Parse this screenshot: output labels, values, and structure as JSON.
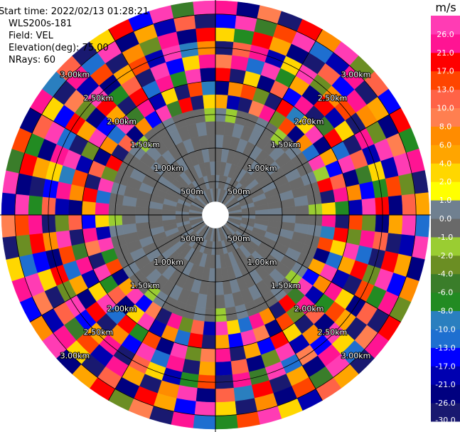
{
  "chart_data": {
    "type": "ppi",
    "info": [
      "Start time: 2022/02/13 01:28:21",
      "WLS200s-181",
      "Field: VEL",
      "Elevation(deg): 75.00",
      "NRays: 60"
    ],
    "colorbar_title": "m/s",
    "clim": [
      -30,
      30
    ],
    "colorbar_ticks": [
      {
        "value": -30,
        "label": "-30.0"
      },
      {
        "value": -26,
        "label": "-26.0"
      },
      {
        "value": -21,
        "label": "-21.0"
      },
      {
        "value": -17,
        "label": "-17.0"
      },
      {
        "value": -13,
        "label": "-13.0"
      },
      {
        "value": -10,
        "label": "-10.0"
      },
      {
        "value": -8,
        "label": "-8.0"
      },
      {
        "value": -6,
        "label": "-6.0"
      },
      {
        "value": -4,
        "label": "-4.0"
      },
      {
        "value": -2,
        "label": "-2.0"
      },
      {
        "value": -1,
        "label": "-1.0"
      },
      {
        "value": 0,
        "label": "0.0"
      },
      {
        "value": 1,
        "label": "1.0"
      },
      {
        "value": 2,
        "label": "2.0"
      },
      {
        "value": 4,
        "label": "4.0"
      },
      {
        "value": 6,
        "label": "6.0"
      },
      {
        "value": 8,
        "label": "8.0"
      },
      {
        "value": 10,
        "label": "10.0"
      },
      {
        "value": 13,
        "label": "13.0"
      },
      {
        "value": 17,
        "label": "17.0"
      },
      {
        "value": 21,
        "label": "21.0"
      },
      {
        "value": 26,
        "label": "26.0"
      }
    ],
    "colors": [
      "#191970",
      "#000080",
      "#0000b0",
      "#0000ff",
      "#1e6fd0",
      "#2a7fbf",
      "#228b22",
      "#3a7d2a",
      "#6b8e23",
      "#9acd32",
      "#696969",
      "#708090",
      "#ffff00",
      "#ffd700",
      "#ffa500",
      "#ff8c00",
      "#ff7f50",
      "#ff6347",
      "#ff4500",
      "#ff0000",
      "#ff1493",
      "#ff3cb4"
    ],
    "range_rings": [
      {
        "value": 0.5,
        "label": "500m"
      },
      {
        "value": 1.0,
        "label": "1.00km"
      },
      {
        "value": 1.5,
        "label": "1.50km"
      },
      {
        "value": 2.0,
        "label": "2.00km"
      },
      {
        "value": 2.5,
        "label": "2.50km"
      },
      {
        "value": 3.0,
        "label": "3.00km"
      }
    ],
    "azimuths": [
      0,
      6,
      12,
      18,
      24,
      30,
      36,
      42,
      48,
      54,
      60,
      66,
      72,
      78,
      84,
      90,
      96,
      102,
      108,
      114,
      120,
      126,
      132,
      138,
      144,
      150,
      156,
      162,
      168,
      174,
      180,
      186,
      192,
      198,
      204,
      210,
      216,
      222,
      228,
      234,
      240,
      246,
      252,
      258,
      264,
      270,
      276,
      282,
      288,
      294,
      300,
      306,
      312,
      318,
      324,
      330,
      336,
      342,
      348,
      354
    ],
    "ranges": [
      0.2,
      0.4,
      0.6,
      0.8,
      1.0,
      1.2,
      1.4,
      1.6,
      1.8,
      2.0,
      2.2,
      2.4,
      2.6,
      2.8,
      3.0,
      3.2
    ],
    "values": [
      [
        -0.5,
        0.5,
        -0.5,
        -0.5,
        0.5,
        -0.5,
        0.5,
        5,
        -23,
        19,
        9,
        -28,
        3,
        -15,
        23
      ],
      [
        0.5,
        -0.5,
        -0.5,
        0.5,
        -0.5,
        -0.5,
        -1.5,
        -19,
        7,
        -28,
        23,
        11,
        -7,
        28,
        -23
      ],
      [
        -0.5,
        -0.5,
        0.5,
        -0.5,
        -0.5,
        0.5,
        -0.5,
        -28,
        15,
        3,
        -11,
        23,
        19,
        -5,
        9
      ],
      [
        -0.5,
        0.5,
        -0.5,
        -0.5,
        0.5,
        -0.5,
        -0.5,
        9,
        -3,
        -23,
        28,
        -19,
        5,
        15,
        -28
      ],
      [
        0.5,
        -0.5,
        -0.5,
        -0.5,
        -0.5,
        0.5,
        0.5,
        23,
        -28,
        11,
        -7,
        3,
        -23,
        28,
        19
      ],
      [
        -0.5,
        -0.5,
        0.5,
        -0.5,
        0.5,
        -0.5,
        -0.5,
        -3,
        19,
        -15,
        5,
        28,
        -28,
        -11,
        7
      ],
      [
        -0.5,
        0.5,
        -0.5,
        0.5,
        -0.5,
        -0.5,
        -1.5,
        15,
        -9,
        23,
        -23,
        -3,
        11,
        -19,
        28
      ],
      [
        0.5,
        -0.5,
        -0.5,
        -0.5,
        -0.5,
        0.5,
        -0.5,
        -23,
        3,
        -28,
        19,
        7,
        -15,
        23,
        -3
      ],
      [
        -0.5,
        -0.5,
        0.5,
        -0.5,
        0.5,
        -0.5,
        0.5,
        7,
        28,
        -5,
        -19,
        15,
        23,
        -28,
        11
      ],
      [
        -0.5,
        0.5,
        -0.5,
        -0.5,
        -0.5,
        -0.5,
        -0.5,
        -11,
        -23,
        19,
        3,
        -28,
        7,
        5,
        -15
      ],
      [
        0.5,
        -0.5,
        -0.5,
        0.5,
        -0.5,
        0.5,
        -0.5,
        28,
        5,
        -11,
        -28,
        23,
        -3,
        -23,
        19
      ],
      [
        -0.5,
        -0.5,
        0.5,
        -0.5,
        -0.5,
        -0.5,
        0.5,
        -1.5,
        -15,
        28,
        11,
        -19,
        28,
        9,
        -7
      ],
      [
        -0.5,
        0.5,
        -0.5,
        -0.5,
        0.5,
        -0.5,
        -0.5,
        19,
        11,
        -23,
        -5,
        3,
        -19,
        28,
        23
      ],
      [
        0.5,
        -0.5,
        -0.5,
        -0.5,
        -0.5,
        0.5,
        -0.5,
        -28,
        23,
        7,
        -15,
        -7,
        15,
        -3,
        -28
      ],
      [
        -0.5,
        -0.5,
        0.5,
        0.5,
        -0.5,
        -0.5,
        -1.5,
        3,
        -7,
        -19,
        28,
        19,
        -23,
        11,
        5
      ],
      [
        -0.5,
        0.5,
        -0.5,
        -0.5,
        0.5,
        -0.5,
        -0.5,
        23,
        -28,
        15,
        -3,
        -23,
        5,
        28,
        -11
      ],
      [
        0.5,
        -0.5,
        -0.5,
        -0.5,
        -0.5,
        0.5,
        0.5,
        -9,
        19,
        -3,
        23,
        11,
        -28,
        -19,
        28
      ],
      [
        -0.5,
        -0.5,
        0.5,
        -0.5,
        0.5,
        -0.5,
        -0.5,
        15,
        3,
        28,
        -11,
        -28,
        19,
        5,
        -23
      ],
      [
        -0.5,
        0.5,
        -0.5,
        0.5,
        -0.5,
        -0.5,
        -0.5,
        -23,
        -11,
        5,
        19,
        -3,
        28,
        -15,
        7
      ],
      [
        0.5,
        -0.5,
        -0.5,
        -0.5,
        -0.5,
        0.5,
        -0.5,
        5,
        28,
        -19,
        -28,
        15,
        -7,
        23,
        -3
      ],
      [
        -0.5,
        -0.5,
        0.5,
        -0.5,
        0.5,
        -0.5,
        0.5,
        -15,
        7,
        23,
        3,
        -23,
        11,
        -28,
        19
      ],
      [
        -0.5,
        0.5,
        -0.5,
        -0.5,
        -0.5,
        -0.5,
        -1.5,
        28,
        -19,
        -7,
        15,
        5,
        -28,
        9,
        23
      ],
      [
        0.5,
        -0.5,
        -0.5,
        0.5,
        -0.5,
        0.5,
        -0.5,
        -5,
        23,
        11,
        -23,
        28,
        3,
        -11,
        -28
      ],
      [
        -0.5,
        -0.5,
        0.5,
        -0.5,
        -0.5,
        -0.5,
        0.5,
        19,
        -3,
        -28,
        7,
        -15,
        23,
        28,
        5
      ],
      [
        -0.5,
        0.5,
        -0.5,
        -0.5,
        0.5,
        -0.5,
        -0.5,
        -28,
        15,
        3,
        -19,
        9,
        -23,
        -5,
        11
      ],
      [
        0.5,
        -0.5,
        -0.5,
        -0.5,
        -0.5,
        0.5,
        -0.5,
        7,
        -23,
        19,
        28,
        -11,
        5,
        15,
        -19
      ],
      [
        -0.5,
        -0.5,
        0.5,
        0.5,
        -0.5,
        -0.5,
        -0.5,
        23,
        9,
        -15,
        -3,
        28,
        -28,
        -23,
        3
      ],
      [
        -0.5,
        0.5,
        -0.5,
        -0.5,
        0.5,
        -0.5,
        0.5,
        -11,
        28,
        5,
        -23,
        -5,
        19,
        7,
        28
      ],
      [
        0.5,
        -0.5,
        -0.5,
        -0.5,
        -0.5,
        0.5,
        -0.5,
        3,
        -15,
        -28,
        11,
        23,
        -9,
        -28,
        15
      ],
      [
        -0.5,
        -0.5,
        0.5,
        -0.5,
        0.5,
        -0.5,
        -1.5,
        28,
        5,
        23,
        -19,
        -28,
        11,
        3,
        -7
      ],
      [
        -0.5,
        0.5,
        -0.5,
        0.5,
        -0.5,
        -0.5,
        -0.5,
        -19,
        -28,
        9,
        5,
        15,
        -23,
        28,
        -11
      ],
      [
        0.5,
        -0.5,
        -0.5,
        -0.5,
        -0.5,
        0.5,
        0.5,
        11,
        19,
        -3,
        -28,
        -7,
        28,
        -15,
        23
      ],
      [
        -0.5,
        -0.5,
        0.5,
        -0.5,
        0.5,
        -0.5,
        -0.5,
        -3,
        -11,
        28,
        23,
        -19,
        7,
        5,
        -28
      ],
      [
        -0.5,
        0.5,
        -0.5,
        -0.5,
        -0.5,
        -0.5,
        -0.5,
        23,
        7,
        -23,
        -11,
        3,
        -28,
        19,
        9
      ],
      [
        0.5,
        -0.5,
        -0.5,
        0.5,
        -0.5,
        0.5,
        -0.5,
        -28,
        -19,
        15,
        28,
        11,
        5,
        -23,
        -3
      ],
      [
        -0.5,
        -0.5,
        0.5,
        -0.5,
        -0.5,
        -0.5,
        0.5,
        9,
        28,
        -7,
        -15,
        -28,
        23,
        11,
        19
      ],
      [
        -0.5,
        0.5,
        -0.5,
        -0.5,
        0.5,
        -0.5,
        -1.5,
        -15,
        3,
        19,
        7,
        23,
        -19,
        -28,
        5
      ],
      [
        0.5,
        -0.5,
        -0.5,
        -0.5,
        -0.5,
        0.5,
        -0.5,
        28,
        -23,
        -11,
        -28,
        5,
        15,
        3,
        -23
      ],
      [
        -0.5,
        -0.5,
        0.5,
        0.5,
        -0.5,
        -0.5,
        -0.5,
        5,
        11,
        28,
        19,
        -15,
        -5,
        23,
        28
      ],
      [
        -0.5,
        0.5,
        -0.5,
        -0.5,
        0.5,
        -0.5,
        0.5,
        -23,
        -7,
        3,
        -23,
        28,
        11,
        -19,
        7
      ],
      [
        0.5,
        -0.5,
        -0.5,
        -0.5,
        -0.5,
        0.5,
        -0.5,
        15,
        28,
        -19,
        5,
        -3,
        -28,
        9,
        -15
      ],
      [
        -0.5,
        -0.5,
        0.5,
        -0.5,
        0.5,
        -0.5,
        -0.5,
        -7,
        -28,
        23,
        -11,
        19,
        3,
        28,
        23
      ],
      [
        -0.5,
        0.5,
        -0.5,
        0.5,
        -0.5,
        -0.5,
        -0.5,
        28,
        9,
        -5,
        15,
        -23,
        -15,
        -11,
        3
      ],
      [
        0.5,
        -0.5,
        -0.5,
        -0.5,
        -0.5,
        0.5,
        0.5,
        -19,
        23,
        -28,
        28,
        7,
        19,
        -3,
        -28
      ],
      [
        -0.5,
        -0.5,
        0.5,
        -0.5,
        0.5,
        -0.5,
        -1.5,
        3,
        -15,
        11,
        -3,
        -28,
        23,
        15,
        9
      ],
      [
        -0.5,
        0.5,
        -0.5,
        -0.5,
        -0.5,
        -0.5,
        -0.5,
        23,
        5,
        -23,
        -19,
        11,
        -7,
        28,
        -19
      ],
      [
        0.5,
        -0.5,
        -0.5,
        0.5,
        -0.5,
        0.5,
        -0.5,
        -11,
        19,
        7,
        23,
        -15,
        -28,
        -23,
        28
      ],
      [
        -0.5,
        -0.5,
        0.5,
        -0.5,
        -0.5,
        -0.5,
        0.5,
        28,
        -28,
        15,
        -9,
        3,
        5,
        19,
        -5
      ],
      [
        -0.5,
        0.5,
        -0.5,
        -0.5,
        0.5,
        -0.5,
        -0.5,
        -3,
        11,
        -19,
        28,
        23,
        -23,
        -7,
        15
      ],
      [
        0.5,
        -0.5,
        -0.5,
        -0.5,
        -0.5,
        0.5,
        -0.5,
        19,
        -23,
        -3,
        -28,
        -11,
        28,
        11,
        -23
      ],
      [
        -0.5,
        -0.5,
        0.5,
        0.5,
        -0.5,
        -0.5,
        -0.5,
        -28,
        7,
        28,
        5,
        19,
        -15,
        3,
        23
      ],
      [
        -0.5,
        0.5,
        -0.5,
        -0.5,
        0.5,
        -0.5,
        0.5,
        11,
        -11,
        -15,
        -23,
        -3,
        9,
        -28,
        -9
      ],
      [
        0.5,
        -0.5,
        -0.5,
        -0.5,
        -0.5,
        0.5,
        -1.5,
        -23,
        28,
        5,
        19,
        28,
        -19,
        23,
        11
      ],
      [
        -0.5,
        -0.5,
        0.5,
        -0.5,
        0.5,
        -0.5,
        -0.5,
        7,
        -5,
        -28,
        -7,
        -23,
        15,
        -11,
        -28
      ],
      [
        -0.5,
        0.5,
        -0.5,
        0.5,
        -0.5,
        -0.5,
        -0.5,
        -15,
        23,
        19,
        11,
        5,
        -28,
        28,
        3
      ],
      [
        0.5,
        -0.5,
        -0.5,
        -0.5,
        -0.5,
        0.5,
        0.5,
        28,
        -19,
        -11,
        -28,
        15,
        7,
        -23,
        19
      ],
      [
        -0.5,
        -0.5,
        0.5,
        -0.5,
        0.5,
        -0.5,
        -0.5,
        -5,
        3,
        23,
        28,
        -19,
        -3,
        5,
        -15
      ],
      [
        -0.5,
        0.5,
        -0.5,
        -0.5,
        -0.5,
        -0.5,
        -0.5,
        19,
        -28,
        -7,
        -15,
        28,
        23,
        -19,
        28
      ],
      [
        0.5,
        -0.5,
        -0.5,
        0.5,
        -0.5,
        0.5,
        -0.5,
        -28,
        15,
        28,
        3,
        -9,
        -23,
        11,
        -5
      ],
      [
        -0.5,
        -0.5,
        0.5,
        -0.5,
        -0.5,
        -0.5,
        -1.5,
        3,
        -9,
        -23,
        23,
        7,
        19,
        -28,
        28
      ]
    ]
  }
}
